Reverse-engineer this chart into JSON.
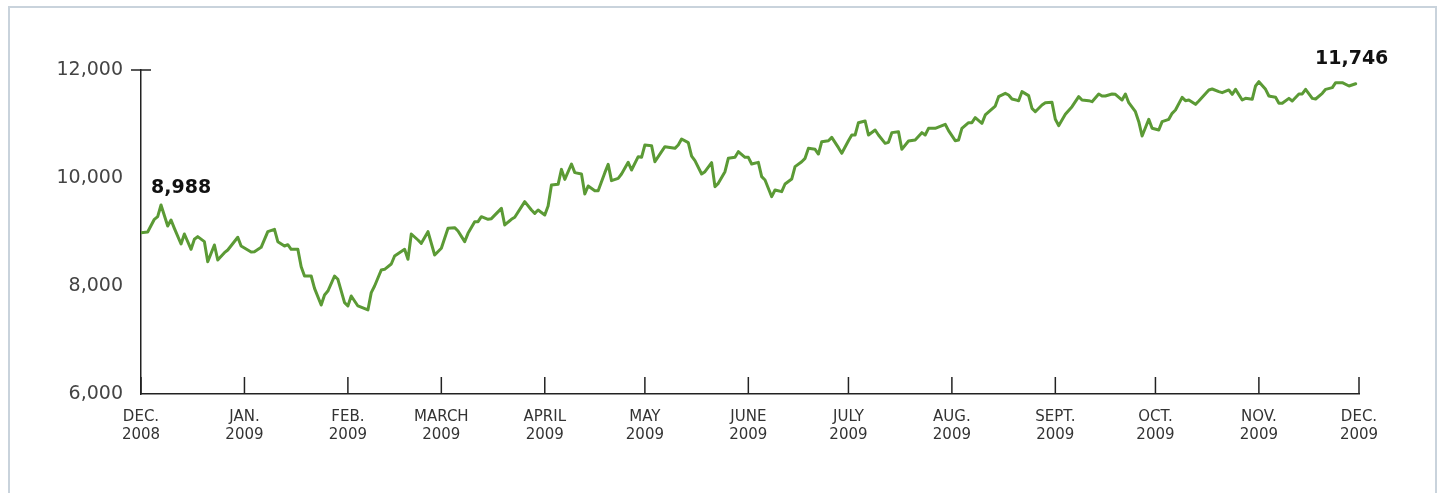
{
  "chart_data": {
    "type": "line",
    "color": "#5b9a35",
    "grid": false,
    "legend": false,
    "marker": "none",
    "line_style": "solid",
    "ylim": [
      6000,
      12000
    ],
    "yticks": [
      {
        "value": 6000,
        "label": "6,000"
      },
      {
        "value": 8000,
        "label": "8,000"
      },
      {
        "value": 10000,
        "label": "10,000"
      },
      {
        "value": 12000,
        "label": "12,000"
      }
    ],
    "xlim": [
      "2008-12-01",
      "2009-12-01"
    ],
    "xticks": [
      {
        "value": "2008-12-01",
        "label": "DEC.\n2008"
      },
      {
        "value": "2009-01-01",
        "label": "JAN.\n2009"
      },
      {
        "value": "2009-02-01",
        "label": "FEB.\n2009"
      },
      {
        "value": "2009-03-01",
        "label": "MARCH\n2009"
      },
      {
        "value": "2009-04-01",
        "label": "APRIL\n2009"
      },
      {
        "value": "2009-05-01",
        "label": "MAY\n2009"
      },
      {
        "value": "2009-06-01",
        "label": "JUNE\n2009"
      },
      {
        "value": "2009-07-01",
        "label": "JULY\n2009"
      },
      {
        "value": "2009-08-01",
        "label": "AUG.\n2009"
      },
      {
        "value": "2009-09-01",
        "label": "SEPT.\n2009"
      },
      {
        "value": "2009-10-01",
        "label": "OCT.\n2009"
      },
      {
        "value": "2009-11-01",
        "label": "NOV.\n2009"
      },
      {
        "value": "2009-12-01",
        "label": "DEC.\n2009"
      }
    ],
    "annotations": [
      {
        "text": "8,988",
        "x": "2008-12-01",
        "y": 8988
      },
      {
        "text": "11,746",
        "x": "2009-11-30",
        "y": 11746
      }
    ],
    "x": [
      "2008-12-01",
      "2008-12-03",
      "2008-12-05",
      "2008-12-06",
      "2008-12-07",
      "2008-12-09",
      "2008-12-10",
      "2008-12-11",
      "2008-12-13",
      "2008-12-14",
      "2008-12-16",
      "2008-12-17",
      "2008-12-18",
      "2008-12-20",
      "2008-12-21",
      "2008-12-23",
      "2008-12-24",
      "2008-12-26",
      "2008-12-27",
      "2008-12-30",
      "2008-12-31",
      "2009-01-03",
      "2009-01-04",
      "2009-01-06",
      "2009-01-08",
      "2009-01-10",
      "2009-01-11",
      "2009-01-13",
      "2009-01-14",
      "2009-01-15",
      "2009-01-17",
      "2009-01-18",
      "2009-01-19",
      "2009-01-21",
      "2009-01-22",
      "2009-01-24",
      "2009-01-25",
      "2009-01-26",
      "2009-01-28",
      "2009-01-29",
      "2009-01-31",
      "2009-02-01",
      "2009-02-02",
      "2009-02-04",
      "2009-02-07",
      "2009-02-08",
      "2009-02-09",
      "2009-02-11",
      "2009-02-12",
      "2009-02-14",
      "2009-02-15",
      "2009-02-18",
      "2009-02-19",
      "2009-02-20",
      "2009-02-22",
      "2009-02-23",
      "2009-02-25",
      "2009-02-27",
      "2009-03-01",
      "2009-03-03",
      "2009-03-05",
      "2009-03-06",
      "2009-03-08",
      "2009-03-09",
      "2009-03-11",
      "2009-03-12",
      "2009-03-13",
      "2009-03-15",
      "2009-03-16",
      "2009-03-19",
      "2009-03-20",
      "2009-03-22",
      "2009-03-23",
      "2009-03-26",
      "2009-03-28",
      "2009-03-29",
      "2009-03-30",
      "2009-04-01",
      "2009-04-02",
      "2009-04-03",
      "2009-04-05",
      "2009-04-06",
      "2009-04-07",
      "2009-04-09",
      "2009-04-10",
      "2009-04-12",
      "2009-04-13",
      "2009-04-14",
      "2009-04-16",
      "2009-04-17",
      "2009-04-19",
      "2009-04-20",
      "2009-04-21",
      "2009-04-23",
      "2009-04-24",
      "2009-04-26",
      "2009-04-27",
      "2009-04-29",
      "2009-04-30",
      "2009-05-01",
      "2009-05-03",
      "2009-05-04",
      "2009-05-06",
      "2009-05-07",
      "2009-05-10",
      "2009-05-11",
      "2009-05-12",
      "2009-05-14",
      "2009-05-15",
      "2009-05-16",
      "2009-05-18",
      "2009-05-19",
      "2009-05-21",
      "2009-05-22",
      "2009-05-23",
      "2009-05-25",
      "2009-05-26",
      "2009-05-28",
      "2009-05-29",
      "2009-05-31",
      "2009-06-01",
      "2009-06-02",
      "2009-06-04",
      "2009-06-05",
      "2009-06-06",
      "2009-06-08",
      "2009-06-09",
      "2009-06-11",
      "2009-06-12",
      "2009-06-14",
      "2009-06-15",
      "2009-06-17",
      "2009-06-18",
      "2009-06-19",
      "2009-06-21",
      "2009-06-22",
      "2009-06-23",
      "2009-06-25",
      "2009-06-26",
      "2009-06-28",
      "2009-06-29",
      "2009-07-01",
      "2009-07-02",
      "2009-07-03",
      "2009-07-04",
      "2009-07-06",
      "2009-07-07",
      "2009-07-09",
      "2009-07-10",
      "2009-07-12",
      "2009-07-13",
      "2009-07-14",
      "2009-07-16",
      "2009-07-17",
      "2009-07-19",
      "2009-07-21",
      "2009-07-23",
      "2009-07-24",
      "2009-07-25",
      "2009-07-27",
      "2009-07-30",
      "2009-07-31",
      "2009-08-02",
      "2009-08-03",
      "2009-08-04",
      "2009-08-06",
      "2009-08-07",
      "2009-08-08",
      "2009-08-10",
      "2009-08-11",
      "2009-08-14",
      "2009-08-15",
      "2009-08-17",
      "2009-08-18",
      "2009-08-19",
      "2009-08-21",
      "2009-08-22",
      "2009-08-24",
      "2009-08-25",
      "2009-08-26",
      "2009-08-28",
      "2009-08-29",
      "2009-08-31",
      "2009-09-01",
      "2009-09-02",
      "2009-09-04",
      "2009-09-06",
      "2009-09-08",
      "2009-09-09",
      "2009-09-11",
      "2009-09-12",
      "2009-09-14",
      "2009-09-15",
      "2009-09-16",
      "2009-09-18",
      "2009-09-19",
      "2009-09-21",
      "2009-09-22",
      "2009-09-23",
      "2009-09-25",
      "2009-09-26",
      "2009-09-27",
      "2009-09-29",
      "2009-09-30",
      "2009-10-02",
      "2009-10-03",
      "2009-10-05",
      "2009-10-06",
      "2009-10-07",
      "2009-10-09",
      "2009-10-10",
      "2009-10-11",
      "2009-10-13",
      "2009-10-14",
      "2009-10-17",
      "2009-10-18",
      "2009-10-20",
      "2009-10-21",
      "2009-10-23",
      "2009-10-24",
      "2009-10-25",
      "2009-10-27",
      "2009-10-28",
      "2009-10-30",
      "2009-10-31",
      "2009-11-01",
      "2009-11-03",
      "2009-11-04",
      "2009-11-06",
      "2009-11-07",
      "2009-11-08",
      "2009-11-10",
      "2009-11-11",
      "2009-11-13",
      "2009-11-14",
      "2009-11-15",
      "2009-11-17",
      "2009-11-18",
      "2009-11-20",
      "2009-11-21",
      "2009-11-23",
      "2009-11-24",
      "2009-11-26",
      "2009-11-28",
      "2009-11-30"
    ],
    "values": [
      8988,
      9000,
      9235,
      9284,
      9500,
      9111,
      9222,
      9068,
      8778,
      8963,
      8680,
      8865,
      8914,
      8821,
      8450,
      8760,
      8482,
      8617,
      8667,
      8902,
      8741,
      8630,
      8636,
      8716,
      9006,
      9049,
      8821,
      8741,
      8765,
      8680,
      8680,
      8358,
      8185,
      8185,
      7957,
      7648,
      7833,
      7907,
      8185,
      8124,
      7691,
      7630,
      7815,
      7630,
      7556,
      7877,
      8000,
      8296,
      8309,
      8407,
      8556,
      8680,
      8494,
      8963,
      8852,
      8790,
      9006,
      8574,
      8698,
      9068,
      9080,
      9019,
      8821,
      8975,
      9191,
      9191,
      9284,
      9235,
      9247,
      9438,
      9130,
      9235,
      9272,
      9562,
      9407,
      9346,
      9407,
      9315,
      9481,
      9870,
      9883,
      10160,
      9975,
      10259,
      10099,
      10074,
      9704,
      9852,
      9765,
      9765,
      10099,
      10253,
      9951,
      9994,
      10074,
      10290,
      10148,
      10395,
      10383,
      10611,
      10599,
      10302,
      10488,
      10580,
      10549,
      10611,
      10722,
      10654,
      10407,
      10321,
      10074,
      10117,
      10284,
      9840,
      9901,
      10117,
      10364,
      10383,
      10488,
      10383,
      10383,
      10259,
      10290,
      10025,
      9963,
      9654,
      9778,
      9747,
      9889,
      9981,
      10210,
      10302,
      10364,
      10549,
      10531,
      10444,
      10673,
      10691,
      10753,
      10562,
      10457,
      10691,
      10796,
      10796,
      11024,
      11056,
      10796,
      10889,
      10796,
      10642,
      10660,
      10840,
      10858,
      10531,
      10685,
      10704,
      10840,
      10796,
      10920,
      10920,
      10994,
      10877,
      10691,
      10704,
      10920,
      11024,
      11024,
      11117,
      11012,
      11167,
      11333,
      11506,
      11568,
      11537,
      11463,
      11432,
      11599,
      11525,
      11290,
      11228,
      11352,
      11395,
      11401,
      11087,
      10969,
      11179,
      11321,
      11506,
      11444,
      11432,
      11414,
      11556,
      11519,
      11519,
      11556,
      11550,
      11444,
      11556,
      11395,
      11228,
      11043,
      10778,
      11087,
      10920,
      10889,
      11043,
      11087,
      11198,
      11259,
      11494,
      11432,
      11444,
      11364,
      11426,
      11630,
      11648,
      11599,
      11580,
      11630,
      11550,
      11642,
      11444,
      11475,
      11457,
      11704,
      11784,
      11642,
      11519,
      11494,
      11383,
      11383,
      11475,
      11426,
      11556,
      11556,
      11642,
      11475,
      11463,
      11568,
      11642,
      11673,
      11765,
      11765,
      11704,
      11746
    ]
  }
}
